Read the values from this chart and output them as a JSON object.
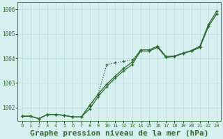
{
  "xlabel": "Graphe pression niveau de la mer (hPa)",
  "xlim": [
    -0.5,
    23.5
  ],
  "ylim": [
    1001.45,
    1006.3
  ],
  "yticks": [
    1002,
    1003,
    1004,
    1005,
    1006
  ],
  "xticks": [
    0,
    1,
    2,
    3,
    4,
    5,
    6,
    7,
    8,
    9,
    10,
    11,
    12,
    13,
    14,
    15,
    16,
    17,
    18,
    19,
    20,
    21,
    22,
    23
  ],
  "background_color": "#d6efef",
  "grid_color": "#b8dada",
  "line_color": "#2d6a2d",
  "s1": [
    1001.65,
    1001.65,
    1001.55,
    1001.72,
    1001.72,
    1001.68,
    1001.62,
    1001.62,
    1001.95,
    1002.45,
    1002.85,
    1003.2,
    1003.5,
    1003.75,
    1004.3,
    1004.3,
    1004.45,
    1004.05,
    1004.08,
    1004.2,
    1004.3,
    1004.45,
    1005.3,
    1005.82
  ],
  "s2": [
    1001.65,
    1001.65,
    1001.55,
    1001.72,
    1001.72,
    1001.68,
    1001.62,
    1001.62,
    1002.05,
    1002.55,
    1003.75,
    1003.82,
    1003.88,
    1003.95,
    1004.3,
    1004.3,
    1004.45,
    1004.05,
    1004.08,
    1004.2,
    1004.3,
    1004.45,
    1005.3,
    1005.82
  ],
  "s3": [
    1001.65,
    1001.65,
    1001.55,
    1001.72,
    1001.72,
    1001.68,
    1001.62,
    1001.62,
    1002.1,
    1002.55,
    1002.95,
    1003.28,
    1003.6,
    1003.85,
    1004.35,
    1004.35,
    1004.5,
    1004.08,
    1004.1,
    1004.22,
    1004.32,
    1004.5,
    1005.38,
    1005.93
  ],
  "font_family": "monospace",
  "xlabel_fontsize": 8,
  "xlabel_fontweight": "bold",
  "tick_fontsize": 5,
  "ytick_fontsize": 5.5
}
